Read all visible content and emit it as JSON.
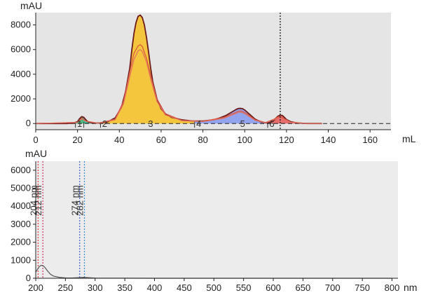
{
  "chart_data": [
    {
      "type": "area",
      "ylabel": "mAU",
      "xlabel": "mL",
      "xlim": [
        0,
        170
      ],
      "ylim": [
        -500,
        9000
      ],
      "xticks": [
        0,
        20,
        40,
        60,
        80,
        100,
        120,
        140,
        160
      ],
      "yticks": [
        0,
        2000,
        4000,
        6000,
        8000
      ],
      "grid": false,
      "background": "#e5e5e5",
      "colors": {
        "main": "#6b1a1a",
        "series2": "#d9523c",
        "series3": "#e07060",
        "baseline": "#222222",
        "fraction_marker": "#222222"
      },
      "series": [
        {
          "x": [
            0,
            15,
            18,
            20,
            21,
            22,
            23,
            24,
            25,
            27,
            30,
            34,
            38,
            41,
            43,
            45,
            46,
            47,
            48,
            49,
            50,
            51,
            52,
            53,
            54,
            55,
            56,
            58,
            60,
            62,
            65,
            70,
            75,
            80,
            85,
            88,
            91,
            93,
            95,
            96,
            97,
            98,
            99,
            100,
            101,
            103,
            105,
            108,
            110,
            112,
            114,
            115,
            116,
            117,
            118,
            119,
            120,
            122,
            125,
            130,
            137,
            140,
            170
          ],
          "values": [
            0,
            0,
            30,
            150,
            400,
            560,
            500,
            300,
            130,
            50,
            40,
            100,
            450,
            1300,
            2600,
            4500,
            6000,
            7300,
            8200,
            8700,
            8800,
            8600,
            8000,
            7000,
            5800,
            4500,
            3400,
            2000,
            1200,
            800,
            500,
            300,
            200,
            200,
            300,
            450,
            650,
            850,
            1050,
            1150,
            1220,
            1230,
            1200,
            1100,
            950,
            650,
            350,
            120,
            60,
            80,
            250,
            450,
            600,
            680,
            650,
            500,
            320,
            150,
            50,
            0,
            0,
            0,
            0
          ]
        },
        {
          "x": [
            0,
            20,
            22,
            24,
            30,
            38,
            42,
            45,
            47,
            49,
            50,
            51,
            53,
            55,
            58,
            62,
            70,
            80,
            90,
            95,
            97,
            98,
            99,
            101,
            105,
            110,
            114,
            116,
            117,
            119,
            122,
            130,
            140,
            170
          ],
          "values": [
            0,
            100,
            430,
            200,
            30,
            350,
            1800,
            4200,
            5700,
            6300,
            6400,
            6250,
            5300,
            3900,
            2000,
            800,
            250,
            180,
            500,
            850,
            1000,
            1020,
            980,
            800,
            300,
            80,
            350,
            550,
            560,
            380,
            120,
            0,
            0,
            0
          ]
        },
        {
          "x": [
            0,
            20,
            22,
            24,
            30,
            38,
            42,
            45,
            47,
            49,
            50,
            51,
            53,
            55,
            58,
            62,
            70,
            80,
            90,
            95,
            97,
            98,
            99,
            101,
            105,
            110,
            114,
            116,
            117,
            119,
            122,
            130,
            140,
            170
          ],
          "values": [
            0,
            90,
            380,
            180,
            25,
            300,
            1600,
            3800,
            5200,
            5900,
            6000,
            5850,
            5000,
            3600,
            1800,
            700,
            220,
            160,
            420,
            760,
            900,
            920,
            880,
            700,
            260,
            60,
            300,
            480,
            500,
            330,
            100,
            0,
            0,
            0
          ]
        }
      ],
      "fractions": [
        {
          "label": "1",
          "start": 19,
          "end": 23,
          "color": "#3cb371"
        },
        {
          "label": "2",
          "start": 23,
          "end": 31,
          "color": "#2ab08a"
        },
        {
          "label": "3",
          "start": 31,
          "end": 76,
          "color": "#f5c22a"
        },
        {
          "label": "4",
          "start": 76,
          "end": 111,
          "color": "#8a9cf0"
        },
        {
          "label": "5",
          "start": 111,
          "end": 136,
          "color": "#e86060"
        },
        {
          "label": "6",
          "start": 111,
          "end": 112,
          "color": "#e86060"
        }
      ],
      "fraction_label_x": [
        21,
        33,
        55,
        78,
        99,
        113
      ],
      "marker_x": 117
    },
    {
      "type": "line",
      "ylabel": "mAU",
      "xlabel": "nm",
      "xlim": [
        200,
        810
      ],
      "ylim": [
        0,
        6500
      ],
      "xticks": [
        200,
        250,
        300,
        350,
        400,
        450,
        500,
        550,
        600,
        650,
        700,
        750,
        800
      ],
      "yticks": [
        0,
        1000,
        2000,
        3000,
        4000,
        5000,
        6000
      ],
      "grid": false,
      "background": "#ececec",
      "colors": {
        "spectrum": "#555555"
      },
      "series": [
        {
          "x": [
            200,
            203,
            206,
            209,
            212,
            215,
            220,
            225,
            230,
            240,
            250,
            260,
            270,
            280,
            290,
            300,
            400,
            500,
            600,
            700,
            800
          ],
          "values": [
            350,
            500,
            650,
            720,
            700,
            620,
            400,
            220,
            120,
            50,
            20,
            15,
            30,
            50,
            30,
            10,
            0,
            0,
            0,
            0,
            0
          ]
        }
      ],
      "wavelength_markers": [
        {
          "label": "204 nm",
          "x": 204,
          "color": "#e03a3a"
        },
        {
          "label": "212 nm",
          "x": 212,
          "color": "#c8356b"
        },
        {
          "label": "274 nm",
          "x": 274,
          "color": "#3a63d6"
        },
        {
          "label": "282 nm",
          "x": 282,
          "color": "#3a8ad6"
        }
      ]
    }
  ]
}
